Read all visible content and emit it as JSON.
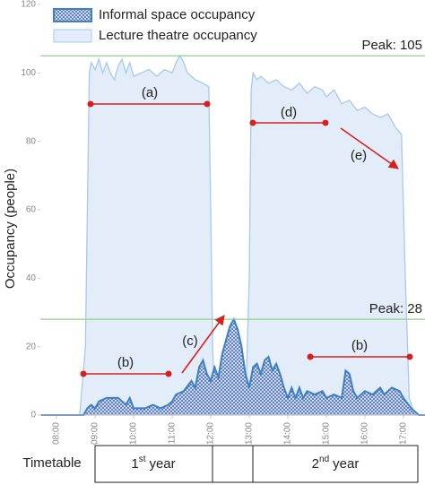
{
  "chart_data": {
    "type": "area",
    "y_label": "Occupancy (people)",
    "xlim": [
      7.58,
      17.56
    ],
    "ylim": [
      0,
      120
    ],
    "yticks": [
      0,
      20,
      40,
      60,
      80,
      100,
      120
    ],
    "xticks": [
      {
        "value": 8,
        "label": "08:00"
      },
      {
        "value": 9,
        "label": "09:00"
      },
      {
        "value": 10,
        "label": "10:00"
      },
      {
        "value": 11,
        "label": "11:00"
      },
      {
        "value": 12,
        "label": "12:00"
      },
      {
        "value": 13,
        "label": "13:00"
      },
      {
        "value": 14,
        "label": "14:00"
      },
      {
        "value": 15,
        "label": "15:00"
      },
      {
        "value": 16,
        "label": "16:00"
      },
      {
        "value": 17,
        "label": "17:00"
      }
    ],
    "series": [
      {
        "name": "Lecture theatre occupancy",
        "color": "#a9c9ea",
        "fill": "#e3ecf9",
        "x": [
          7.6,
          8.6,
          8.75,
          8.85,
          8.9,
          9.0,
          9.1,
          9.2,
          9.3,
          9.4,
          9.5,
          9.6,
          9.7,
          9.8,
          9.9,
          10.0,
          10.2,
          10.4,
          10.6,
          10.8,
          11.0,
          11.1,
          11.2,
          11.3,
          11.4,
          11.6,
          11.8,
          11.95,
          12.0,
          12.05,
          12.1,
          12.4,
          12.9,
          13.0,
          13.05,
          13.1,
          13.2,
          13.3,
          13.5,
          13.7,
          13.9,
          14.1,
          14.3,
          14.5,
          14.7,
          14.9,
          15.0,
          15.2,
          15.4,
          15.6,
          15.8,
          16.0,
          16.2,
          16.4,
          16.6,
          16.8,
          16.95,
          17.05,
          17.15,
          17.3,
          17.56
        ],
        "values": [
          0,
          0,
          20,
          100,
          103,
          101,
          104,
          100,
          103,
          100,
          98,
          102,
          104,
          100,
          103,
          99,
          100,
          101,
          99,
          101,
          100,
          103,
          105,
          103,
          100,
          98,
          97,
          96,
          60,
          20,
          3,
          1,
          1,
          40,
          95,
          100,
          98,
          99,
          97,
          98,
          96,
          95,
          97,
          94,
          96,
          95,
          93,
          95,
          91,
          92,
          89,
          90,
          88,
          87,
          88,
          84,
          82,
          40,
          5,
          0,
          0
        ]
      },
      {
        "name": "Informal space occupancy",
        "color": "#3d7fc4",
        "fill": "pattern",
        "x": [
          7.6,
          8.7,
          8.8,
          8.9,
          9.0,
          9.1,
          9.3,
          9.6,
          9.8,
          9.9,
          10.0,
          10.1,
          10.3,
          10.5,
          10.7,
          10.9,
          11.0,
          11.1,
          11.3,
          11.5,
          11.6,
          11.7,
          11.8,
          11.9,
          12.0,
          12.1,
          12.2,
          12.3,
          12.4,
          12.5,
          12.6,
          12.7,
          12.8,
          12.9,
          13.0,
          13.1,
          13.2,
          13.3,
          13.4,
          13.5,
          13.6,
          13.7,
          13.8,
          13.9,
          14.0,
          14.1,
          14.2,
          14.3,
          14.4,
          14.5,
          14.7,
          14.9,
          15.0,
          15.2,
          15.4,
          15.5,
          15.6,
          15.7,
          15.8,
          16.0,
          16.2,
          16.4,
          16.5,
          16.7,
          16.9,
          17.0,
          17.2,
          17.4,
          17.56
        ],
        "values": [
          0,
          0,
          2,
          3,
          2,
          4,
          5,
          5,
          3,
          5,
          2,
          2,
          2,
          3,
          2,
          3,
          4,
          6,
          7,
          10,
          8,
          14,
          16,
          12,
          10,
          14,
          11,
          18,
          22,
          26,
          28,
          25,
          20,
          12,
          8,
          14,
          15,
          12,
          16,
          17,
          13,
          15,
          12,
          8,
          5,
          8,
          5,
          8,
          5,
          7,
          6,
          7,
          5,
          6,
          5,
          13,
          12,
          7,
          5,
          7,
          6,
          8,
          6,
          8,
          7,
          5,
          2,
          0,
          0
        ]
      }
    ],
    "peaks": [
      {
        "value": 105,
        "label": "Peak: 105"
      },
      {
        "value": 28,
        "label": "Peak: 28"
      }
    ],
    "peak_color": "#8fd18a",
    "annotation_color": "#d42020",
    "annotations": [
      "(a)",
      "(b)",
      "(c)",
      "(d)",
      "(e)",
      "(b)"
    ]
  },
  "timetable": {
    "title": "Timetable",
    "blocks": [
      {
        "ordinal": "1",
        "suffix": "st",
        "text": "year"
      },
      {
        "ordinal": "2",
        "suffix": "nd",
        "text": "year"
      }
    ]
  }
}
